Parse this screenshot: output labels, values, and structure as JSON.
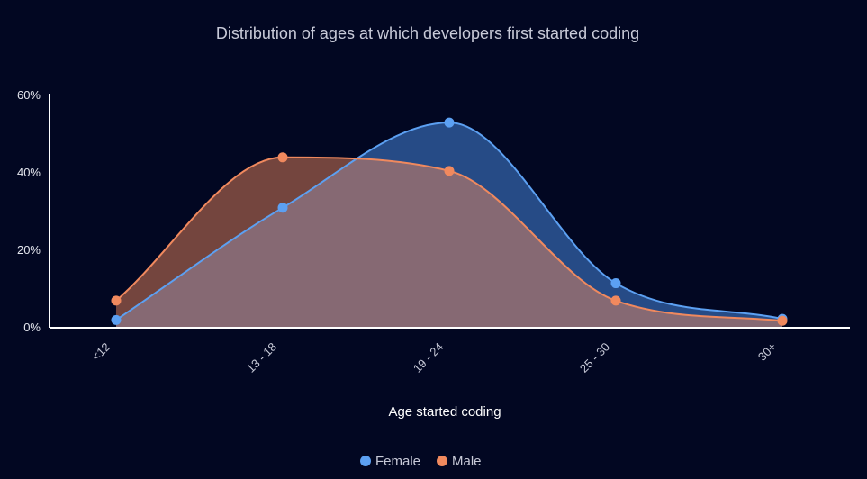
{
  "chart_data": {
    "type": "area",
    "title": "Distribution of ages at which developers first started coding",
    "xlabel": "Age started coding",
    "ylabel": "",
    "categories": [
      "<12",
      "13 - 18",
      "19 - 24",
      "25 - 30",
      "30+"
    ],
    "ylim": [
      0,
      60
    ],
    "yticks": [
      "0%",
      "20%",
      "40%",
      "60%"
    ],
    "grid": false,
    "legend_position": "bottom",
    "series": [
      {
        "name": "Female",
        "color": "#5ca0f2",
        "values": [
          2,
          31,
          53,
          11.5,
          2.3
        ]
      },
      {
        "name": "Male",
        "color": "#f0895e",
        "values": [
          7,
          44,
          40.5,
          7,
          1.8
        ]
      }
    ]
  }
}
